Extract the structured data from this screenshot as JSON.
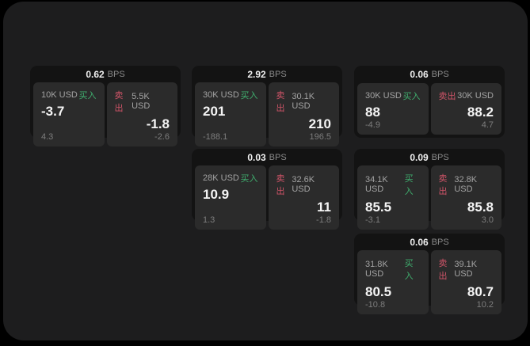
{
  "labels": {
    "buy": "买入",
    "sell": "卖出",
    "bps": "BPS"
  },
  "colors": {
    "buy_green": "#3fae6e",
    "sell_red": "#cf5468",
    "panel_bg": "#2b2b2b",
    "card_bg": "#131313",
    "page_bg": "#1d1d1e"
  },
  "cards": [
    {
      "bps": "0.62",
      "col": 1,
      "row": 1,
      "buy": {
        "amount": "10K USD",
        "price": "-3.7",
        "delta": "4.3"
      },
      "sell": {
        "amount": "5.5K USD",
        "price": "-1.8",
        "delta": "-2.6"
      }
    },
    {
      "bps": "2.92",
      "col": 2,
      "row": 1,
      "buy": {
        "amount": "30K USD",
        "price": "201",
        "delta": "-188.1"
      },
      "sell": {
        "amount": "30.1K USD",
        "price": "210",
        "delta": "196.5"
      }
    },
    {
      "bps": "0.06",
      "col": 3,
      "row": 1,
      "buy": {
        "amount": "30K USD",
        "price": "88",
        "delta": "-4.9"
      },
      "sell": {
        "amount": "30K USD",
        "price": "88.2",
        "delta": "4.7"
      }
    },
    {
      "bps": "0.03",
      "col": 2,
      "row": 2,
      "buy": {
        "amount": "28K USD",
        "price": "10.9",
        "delta": "1.3"
      },
      "sell": {
        "amount": "32.6K USD",
        "price": "11",
        "delta": "-1.8"
      }
    },
    {
      "bps": "0.09",
      "col": 3,
      "row": 2,
      "buy": {
        "amount": "34.1K USD",
        "price": "85.5",
        "delta": "-3.1"
      },
      "sell": {
        "amount": "32.8K USD",
        "price": "85.8",
        "delta": "3.0"
      }
    },
    {
      "bps": "0.06",
      "col": 3,
      "row": 3,
      "buy": {
        "amount": "31.8K USD",
        "price": "80.5",
        "delta": "-10.8"
      },
      "sell": {
        "amount": "39.1K USD",
        "price": "80.7",
        "delta": "10.2"
      }
    }
  ]
}
